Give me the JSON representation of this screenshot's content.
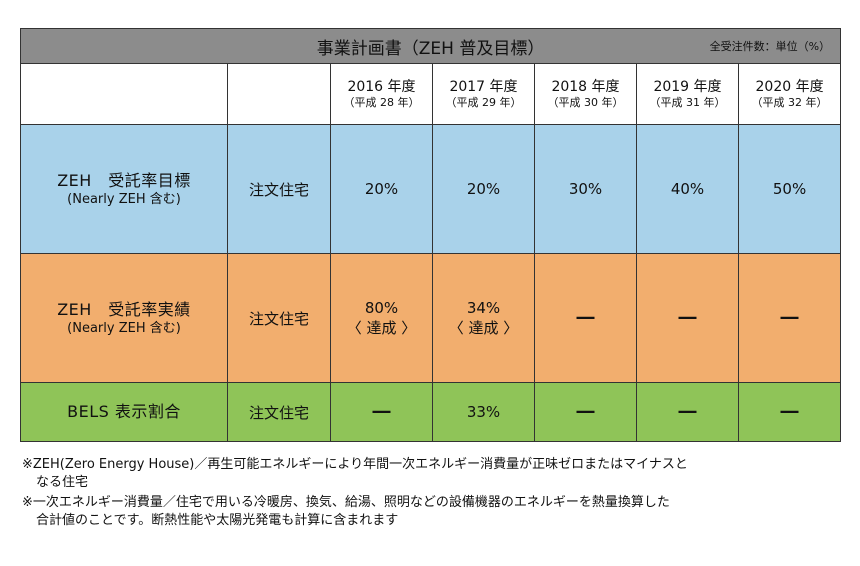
{
  "title": "事業計画書（ZEH 普及目標）",
  "unit": "全受注件数：単位（%）",
  "years": [
    {
      "year": "2016 年度",
      "era": "（平成 28 年）"
    },
    {
      "year": "2017 年度",
      "era": "（平成 29 年）"
    },
    {
      "year": "2018 年度",
      "era": "（平成 30 年）"
    },
    {
      "year": "2019 年度",
      "era": "（平成 31 年）"
    },
    {
      "year": "2020 年度",
      "era": "（平成 32 年）"
    }
  ],
  "rows": [
    {
      "category": "ZEH　受託率目標",
      "sub": "(Nearly ZEH 含む)",
      "type": "注文住宅",
      "values": [
        {
          "main": "20%",
          "note": ""
        },
        {
          "main": "20%",
          "note": ""
        },
        {
          "main": "30%",
          "note": ""
        },
        {
          "main": "40%",
          "note": ""
        },
        {
          "main": "50%",
          "note": ""
        }
      ]
    },
    {
      "category": "ZEH　受託率実績",
      "sub": "(Nearly ZEH 含む)",
      "type": "注文住宅",
      "values": [
        {
          "main": "80%",
          "note": "〈 達成 〉"
        },
        {
          "main": "34%",
          "note": "〈 達成 〉"
        },
        {
          "main": "―",
          "note": ""
        },
        {
          "main": "―",
          "note": ""
        },
        {
          "main": "―",
          "note": ""
        }
      ]
    },
    {
      "category": "BELS 表示割合",
      "sub": "",
      "type": "注文住宅",
      "values": [
        {
          "main": "―",
          "note": ""
        },
        {
          "main": "33%",
          "note": ""
        },
        {
          "main": "―",
          "note": ""
        },
        {
          "main": "―",
          "note": ""
        },
        {
          "main": "―",
          "note": ""
        }
      ]
    }
  ],
  "notes": [
    {
      "line1": "※ZEH(Zero Energy House)／再生可能エネルギーにより年間一次エネルギー消費量が正味ゼロまたはマイナスと",
      "line2": "なる住宅"
    },
    {
      "line1": "※一次エネルギー消費量／住宅で用いる冷暖房、換気、給湯、照明などの設備機器のエネルギーを熱量換算した",
      "line2": "合計値のことです。断熱性能や太陽光発電も計算に含まれます"
    }
  ],
  "colors": {
    "header": "#8c8c8c",
    "target_row": "#a9d2ea",
    "actual_row": "#f2ae6e",
    "bels_row": "#8fc458"
  }
}
